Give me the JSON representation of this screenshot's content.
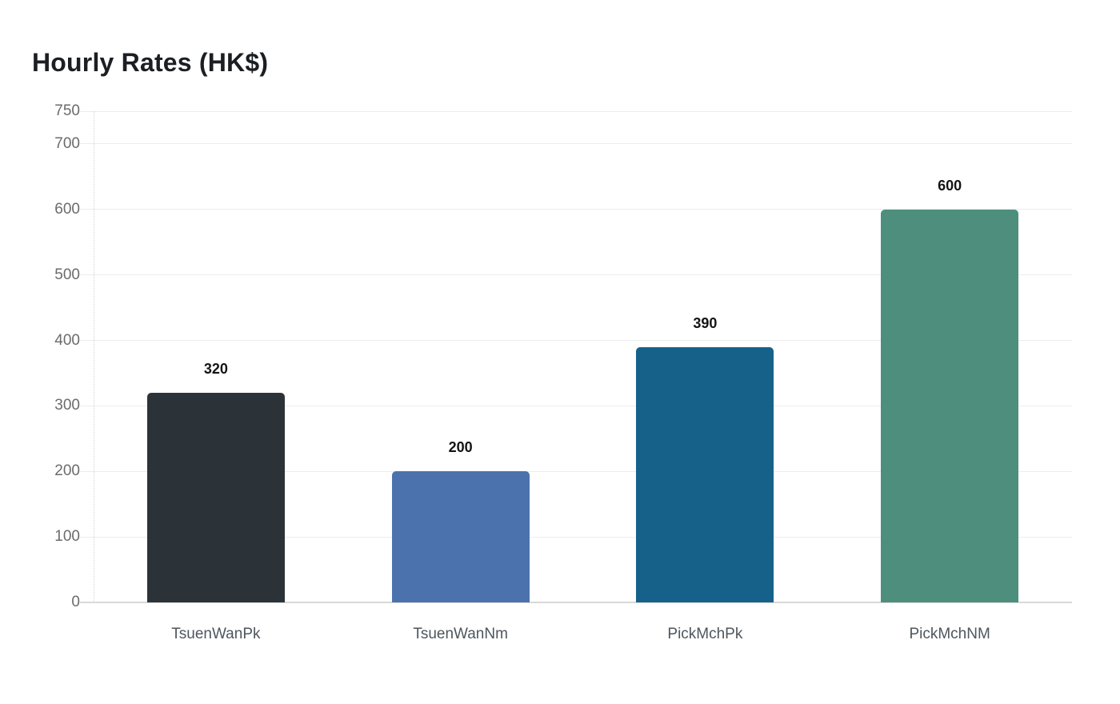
{
  "page": {
    "title": "Hourly Rates (HK$)"
  },
  "chart_data": {
    "type": "bar",
    "title": "Hourly Rates (HK$)",
    "categories": [
      "TsuenWanPk",
      "TsuenWanNm",
      "PickMchPk",
      "PickMchNM"
    ],
    "values": [
      320,
      200,
      390,
      600
    ],
    "value_labels": [
      "320",
      "200",
      "390",
      "600"
    ],
    "bar_colors": [
      "#2b3338",
      "#4c72ae",
      "#16618a",
      "#4d8e7c"
    ],
    "xlabel": "",
    "ylabel": "",
    "ylim": [
      0,
      750
    ],
    "yticks": [
      0,
      100,
      200,
      300,
      400,
      500,
      600,
      700,
      750
    ],
    "grid": true,
    "legend": false,
    "style": {
      "grid_color": "#ececec",
      "axis_line_color": "#d9d9d9",
      "ytick_text_color": "#6b6b6b",
      "xtick_text_color": "#4e565c",
      "value_text_color": "#141414",
      "title_color": "#1b1f23"
    }
  }
}
